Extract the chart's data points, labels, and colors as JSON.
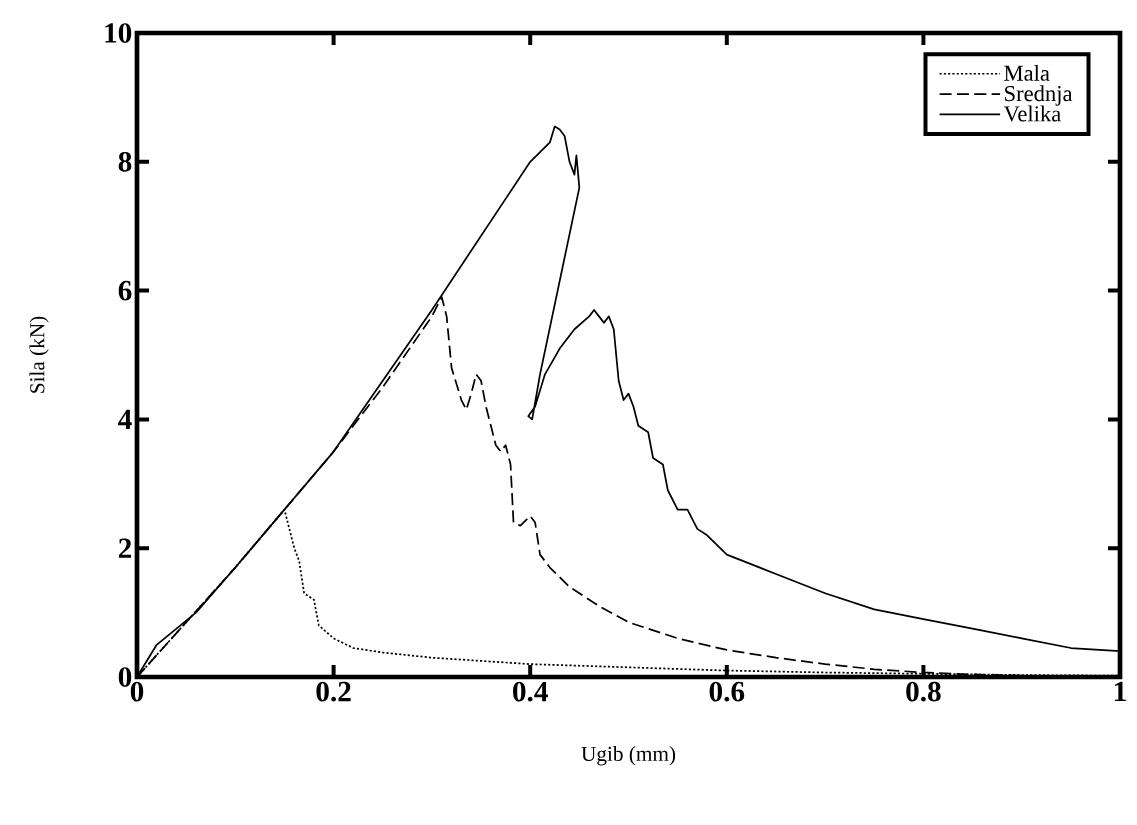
{
  "chart_data": {
    "type": "line",
    "xlabel": "Ugib (mm)",
    "ylabel": "Sila (kN)",
    "xlim": [
      0,
      1
    ],
    "ylim": [
      0,
      10
    ],
    "xticks": [
      0,
      0.2,
      0.4,
      0.6,
      0.8,
      1
    ],
    "yticks": [
      0,
      2,
      4,
      6,
      8,
      10
    ],
    "grid": false,
    "legend": "top right",
    "marker": "none",
    "series": [
      {
        "name": "Mala",
        "color": "#000000",
        "line_style": "dotted",
        "x": [
          0,
          0.05,
          0.1,
          0.15,
          0.155,
          0.16,
          0.165,
          0.17,
          0.18,
          0.185,
          0.2,
          0.22,
          0.25,
          0.3,
          0.4,
          0.5,
          0.6,
          0.7,
          0.8,
          0.9,
          1.0
        ],
        "values": [
          0,
          0.85,
          1.7,
          2.6,
          2.3,
          2.0,
          1.8,
          1.3,
          1.2,
          0.8,
          0.6,
          0.45,
          0.38,
          0.3,
          0.2,
          0.15,
          0.1,
          0.07,
          0.05,
          0.03,
          0.02
        ]
      },
      {
        "name": "Srednja",
        "color": "#000000",
        "line_style": "dashed",
        "x": [
          0,
          0.05,
          0.1,
          0.15,
          0.2,
          0.25,
          0.3,
          0.31,
          0.315,
          0.32,
          0.33,
          0.335,
          0.34,
          0.345,
          0.35,
          0.355,
          0.36,
          0.365,
          0.37,
          0.375,
          0.38,
          0.383,
          0.39,
          0.4,
          0.405,
          0.41,
          0.42,
          0.44,
          0.47,
          0.5,
          0.55,
          0.6,
          0.65,
          0.7,
          0.75,
          0.8,
          0.85,
          0.9
        ],
        "values": [
          0,
          0.85,
          1.7,
          2.6,
          3.5,
          4.5,
          5.6,
          5.9,
          5.6,
          4.8,
          4.3,
          4.15,
          4.4,
          4.7,
          4.6,
          4.2,
          3.9,
          3.6,
          3.5,
          3.6,
          3.3,
          2.4,
          2.35,
          2.5,
          2.4,
          1.9,
          1.7,
          1.4,
          1.1,
          0.85,
          0.6,
          0.42,
          0.3,
          0.2,
          0.12,
          0.07,
          0.04,
          0.02
        ]
      },
      {
        "name": "Velika",
        "color": "#000000",
        "line_style": "solid",
        "x": [
          0,
          0.02,
          0.06,
          0.1,
          0.2,
          0.3,
          0.4,
          0.42,
          0.425,
          0.43,
          0.435,
          0.44,
          0.445,
          0.447,
          0.45,
          0.41,
          0.402,
          0.398,
          0.405,
          0.415,
          0.43,
          0.445,
          0.46,
          0.465,
          0.47,
          0.475,
          0.48,
          0.485,
          0.49,
          0.495,
          0.5,
          0.505,
          0.51,
          0.52,
          0.525,
          0.535,
          0.54,
          0.55,
          0.56,
          0.57,
          0.58,
          0.6,
          0.65,
          0.7,
          0.75,
          0.8,
          0.85,
          0.9,
          0.95,
          1.0
        ],
        "values": [
          0,
          0.5,
          1.0,
          1.7,
          3.5,
          5.7,
          8.0,
          8.3,
          8.55,
          8.5,
          8.4,
          8.0,
          7.8,
          8.1,
          7.6,
          4.7,
          4.0,
          4.05,
          4.2,
          4.7,
          5.1,
          5.4,
          5.6,
          5.7,
          5.6,
          5.5,
          5.6,
          5.4,
          4.6,
          4.3,
          4.4,
          4.2,
          3.9,
          3.8,
          3.4,
          3.3,
          2.9,
          2.6,
          2.6,
          2.3,
          2.2,
          1.9,
          1.6,
          1.3,
          1.05,
          0.9,
          0.75,
          0.6,
          0.45,
          0.4
        ]
      }
    ]
  }
}
